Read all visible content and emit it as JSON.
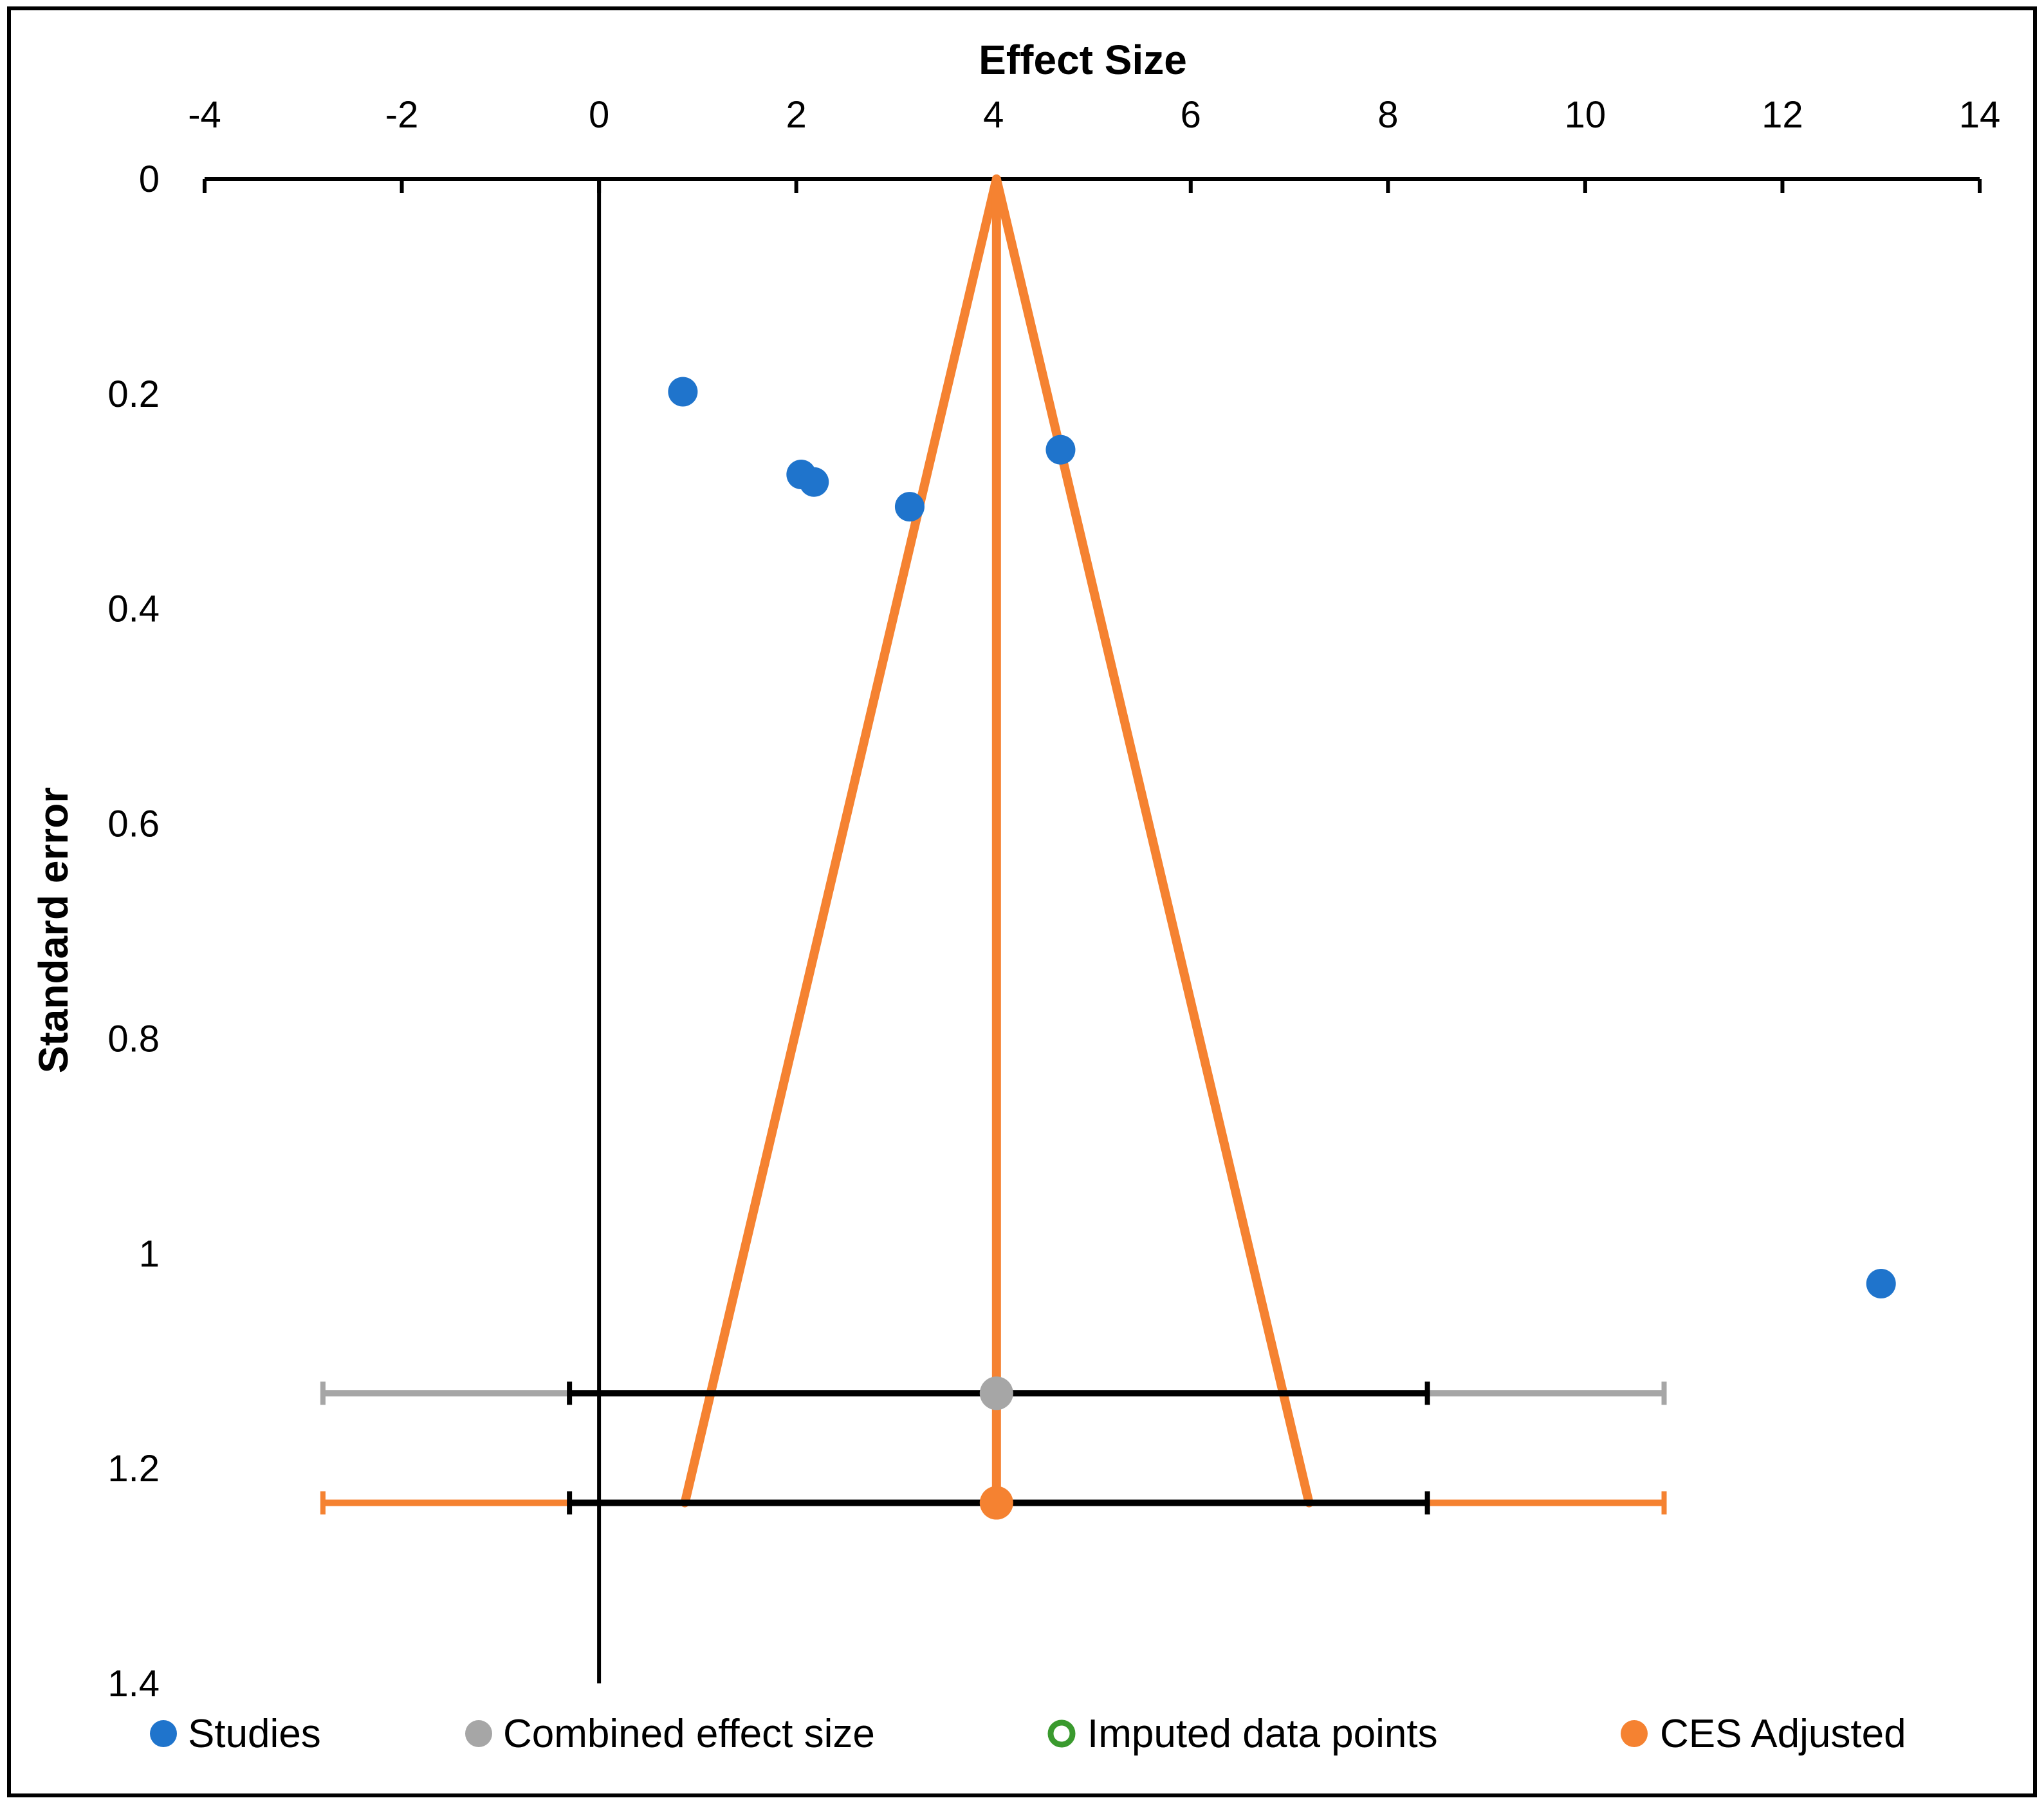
{
  "chart_data": {
    "type": "scatter",
    "title": "",
    "xlabel": "Effect Size",
    "ylabel": "Standard error",
    "xlim": [
      -4,
      14
    ],
    "ylim": [
      0,
      1.4
    ],
    "y_inverted": true,
    "x_axis_position": "top",
    "x_ticks": [
      "-4",
      "-2",
      "0",
      "2",
      "4",
      "6",
      "8",
      "10",
      "12",
      "14"
    ],
    "y_ticks": [
      "0",
      "0.2",
      "0.4",
      "0.6",
      "0.8",
      "1",
      "1.2",
      "1.4"
    ],
    "series": [
      {
        "name": "Studies",
        "color": "#1f74cc",
        "marker": "filled-circle",
        "points": [
          {
            "x": 0.85,
            "y": 0.198
          },
          {
            "x": 2.05,
            "y": 0.275
          },
          {
            "x": 2.18,
            "y": 0.282
          },
          {
            "x": 3.15,
            "y": 0.305
          },
          {
            "x": 4.68,
            "y": 0.252
          },
          {
            "x": 13.0,
            "y": 1.028
          }
        ]
      },
      {
        "name": "Combined effect size",
        "color": "#a6a6a6",
        "marker": "filled-circle",
        "points": [
          {
            "x": 4.03,
            "y": 1.13
          }
        ],
        "ci_inner": [
          -0.3,
          8.4
        ],
        "ci_outer": [
          -2.8,
          10.8
        ]
      },
      {
        "name": "Imputed data points",
        "color": "#3a9a2e",
        "marker": "hollow-circle",
        "points": []
      },
      {
        "name": "CES Adjusted",
        "color": "#f58231",
        "marker": "filled-circle",
        "points": [
          {
            "x": 4.03,
            "y": 1.232
          }
        ],
        "ci_inner": [
          -0.3,
          8.4
        ],
        "ci_outer": [
          -2.8,
          10.8
        ]
      }
    ],
    "funnel": {
      "color": "#f58231",
      "apex": {
        "x": 4.03,
        "y": 0
      },
      "left_base": {
        "x": 0.87,
        "y": 1.232
      },
      "right_base": {
        "x": 7.2,
        "y": 1.232
      }
    },
    "reference_line": {
      "x": 0,
      "color": "#000000"
    },
    "ci_inner_color": "#000000",
    "legend": {
      "position": "bottom",
      "entries": [
        "Studies",
        "Combined effect size",
        "Imputed data points",
        "CES Adjusted"
      ]
    },
    "grid": false
  }
}
